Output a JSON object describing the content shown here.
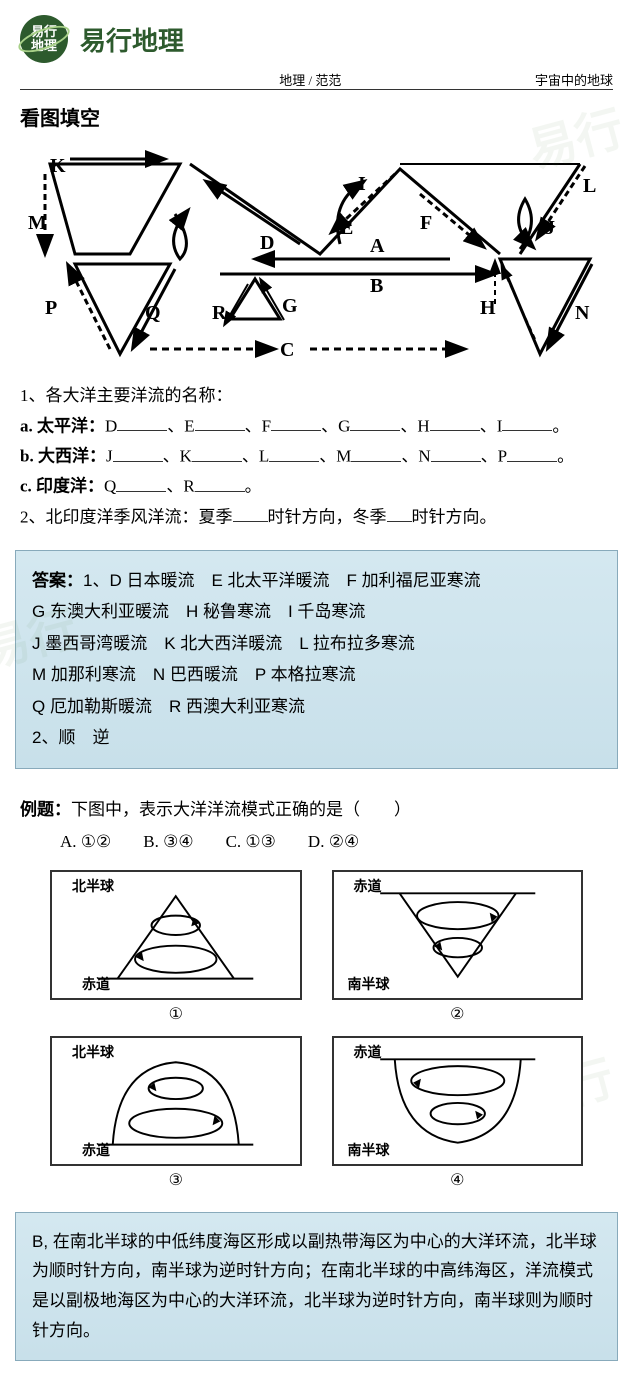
{
  "header": {
    "logo_text1": "易行",
    "logo_text2": "地理",
    "brand": "易行地理",
    "meta_center": "地理 / 范范",
    "meta_right": "宇宙中的地球"
  },
  "section_title": "看图填空",
  "main_diagram": {
    "labels": [
      "K",
      "I",
      "L",
      "M",
      "D",
      "E",
      "F",
      "J",
      "A",
      "B",
      "P",
      "Q",
      "R",
      "G",
      "H",
      "C",
      "N"
    ],
    "line_color": "#000000",
    "stroke_width": 3
  },
  "q1": {
    "intro": "1、各大洋主要洋流的名称：",
    "lines": [
      {
        "label": "a. 太平洋：",
        "letters": [
          "D",
          "E",
          "F",
          "G",
          "H",
          "I"
        ]
      },
      {
        "label": "b. 大西洋：",
        "letters": [
          "J",
          "K",
          "L",
          "M",
          "N",
          "P"
        ]
      },
      {
        "label": "c. 印度洋：",
        "letters": [
          "Q",
          "R"
        ]
      }
    ]
  },
  "q2": {
    "text_p1": "2、北印度洋季风洋流：夏季",
    "text_p2": "时针方向，冬季",
    "text_p3": "时针方向。"
  },
  "answer1": {
    "label": "答案：",
    "lines": [
      "1、D 日本暖流　E 北太平洋暖流　F 加利福尼亚寒流",
      "G 东澳大利亚暖流　H 秘鲁寒流　I 千岛寒流",
      "J 墨西哥湾暖流　K 北大西洋暖流　L 拉布拉多寒流",
      "M 加那利寒流　N 巴西暖流　P 本格拉寒流",
      "Q 厄加勒斯暖流　R 西澳大利亚寒流",
      "2、顺　逆"
    ]
  },
  "example": {
    "label": "例题：",
    "text": "下图中，表示大洋洋流模式正确的是（　　）",
    "options": [
      {
        "key": "A.",
        "val": "①②"
      },
      {
        "key": "B.",
        "val": "③④"
      },
      {
        "key": "C.",
        "val": "①③"
      },
      {
        "key": "D.",
        "val": "②④"
      }
    ]
  },
  "mini_diagrams": [
    {
      "num": "①",
      "top": "北半球",
      "bottom": "赤道",
      "bottom_pos": "left"
    },
    {
      "num": "②",
      "top": "赤道",
      "bottom": "南半球",
      "bottom_pos": "leftish"
    },
    {
      "num": "③",
      "top": "北半球",
      "bottom": "赤道",
      "bottom_pos": "left"
    },
    {
      "num": "④",
      "top": "赤道",
      "bottom": "南半球",
      "bottom_pos": "leftish"
    }
  ],
  "explain": {
    "text": "B, 在南北半球的中低纬度海区形成以副热带海区为中心的大洋环流，北半球为顺时针方向，南半球为逆时针方向；在南北半球的中高纬海区，洋流模式是以副极地海区为中心的大洋环流，北半球为逆时针方向，南半球则为顺时针方向。"
  },
  "colors": {
    "answer_bg_top": "#d4e8f0",
    "answer_bg_bottom": "#c8e0ea",
    "brand_green": "#2d5a2d"
  }
}
